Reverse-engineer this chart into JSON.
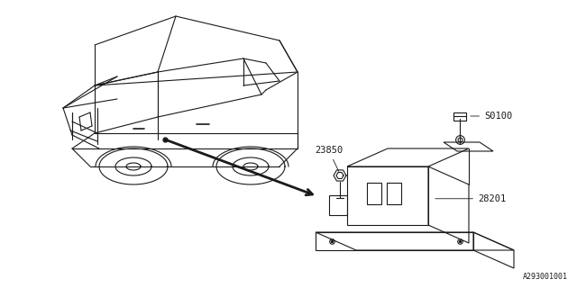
{
  "bg_color": "#ffffff",
  "line_color": "#1a1a1a",
  "diagram_id": "A293001001",
  "label_28201": "28201",
  "label_23850": "23850",
  "label_S0100": "S0100",
  "font_size": 7.5
}
